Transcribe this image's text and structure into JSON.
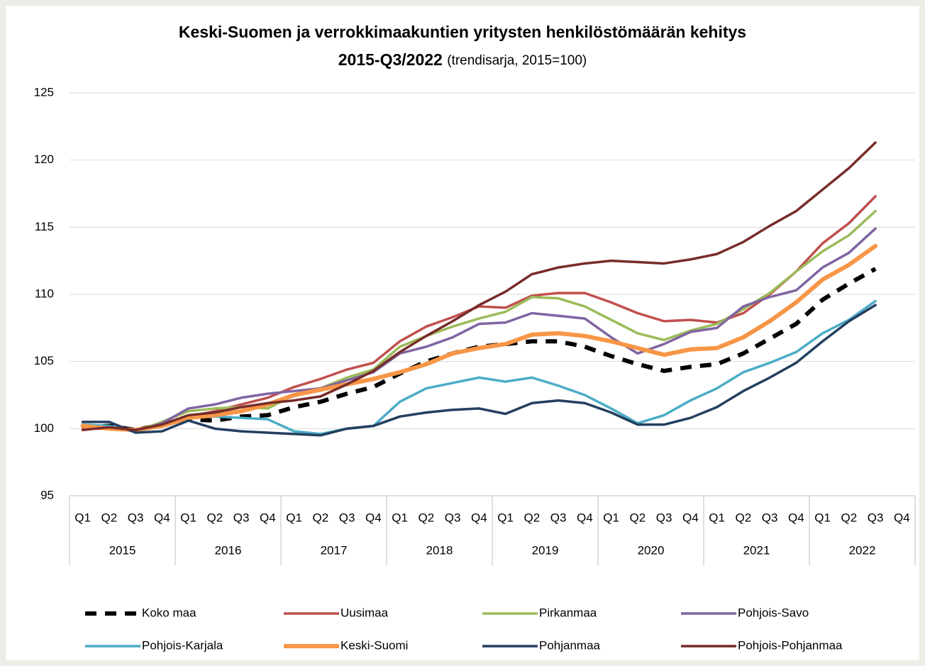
{
  "chart_data": {
    "type": "line",
    "title": [
      "Keski-Suomen ja verrokkimaakuntien yritysten henkilöstömäärän kehitys",
      "2015-Q3/2022"
    ],
    "subtitle": "(trendisarja, 2015=100)",
    "categories": [
      "Q1",
      "Q2",
      "Q3",
      "Q4",
      "Q1",
      "Q2",
      "Q3",
      "Q4",
      "Q1",
      "Q2",
      "Q3",
      "Q4",
      "Q1",
      "Q2",
      "Q3",
      "Q4",
      "Q1",
      "Q2",
      "Q3",
      "Q4",
      "Q1",
      "Q2",
      "Q3",
      "Q4",
      "Q1",
      "Q2",
      "Q3",
      "Q4",
      "Q1",
      "Q2",
      "Q3",
      "Q4"
    ],
    "groups": [
      "2015",
      "2016",
      "2017",
      "2018",
      "2019",
      "2020",
      "2021",
      "2022"
    ],
    "ylim": [
      95,
      125
    ],
    "yticks": [
      95,
      100,
      105,
      110,
      115,
      120,
      125
    ],
    "grid": true,
    "legend": "bottom",
    "series": [
      {
        "name": "Koko maa",
        "color": "#000000",
        "dashed": true,
        "values": [
          100.1,
          100.2,
          99.9,
          100.3,
          100.7,
          100.6,
          100.9,
          101.0,
          101.6,
          102.0,
          102.6,
          103.1,
          104.1,
          105.0,
          105.6,
          106.1,
          106.3,
          106.5,
          106.5,
          106.1,
          105.4,
          104.8,
          104.3,
          104.6,
          104.8,
          105.6,
          106.7,
          107.8,
          109.6,
          110.8,
          111.9,
          null
        ]
      },
      {
        "name": "Uusimaa",
        "color": "#c0504d",
        "values": [
          100.0,
          100.0,
          99.9,
          100.4,
          100.9,
          101.3,
          101.8,
          102.3,
          103.1,
          103.7,
          104.4,
          104.9,
          106.5,
          107.6,
          108.3,
          109.1,
          109.0,
          109.9,
          110.1,
          110.1,
          109.4,
          108.6,
          108.0,
          108.1,
          107.9,
          108.6,
          110.0,
          111.7,
          113.8,
          115.3,
          117.3,
          null
        ]
      },
      {
        "name": "Pirkanmaa",
        "color": "#9bbb59",
        "values": [
          100.2,
          100.1,
          99.8,
          100.5,
          101.3,
          101.5,
          101.6,
          101.5,
          102.5,
          103.0,
          103.8,
          104.4,
          106.1,
          106.9,
          107.6,
          108.2,
          108.7,
          109.8,
          109.7,
          109.1,
          108.1,
          107.1,
          106.6,
          107.3,
          107.8,
          108.9,
          110.1,
          111.7,
          113.2,
          114.4,
          116.2,
          null
        ]
      },
      {
        "name": "Pohjois-Savo",
        "color": "#8064a2",
        "values": [
          100.2,
          100.1,
          99.8,
          100.4,
          101.5,
          101.8,
          102.3,
          102.6,
          102.8,
          103.0,
          103.6,
          104.2,
          105.6,
          106.1,
          106.8,
          107.8,
          107.9,
          108.6,
          108.4,
          108.2,
          106.8,
          105.6,
          106.3,
          107.2,
          107.5,
          109.1,
          109.8,
          110.3,
          112.0,
          113.1,
          114.9,
          null
        ]
      },
      {
        "name": "Pohjois-Karjala",
        "color": "#4bacc6",
        "values": [
          100.3,
          100.2,
          99.8,
          100.2,
          100.8,
          100.9,
          100.8,
          100.7,
          99.8,
          99.6,
          100.0,
          100.2,
          102.0,
          103.0,
          103.4,
          103.8,
          103.5,
          103.8,
          103.2,
          102.5,
          101.5,
          100.4,
          101.0,
          102.1,
          103.0,
          104.2,
          104.9,
          105.7,
          107.1,
          108.1,
          109.5,
          null
        ]
      },
      {
        "name": "Keski-Suomi",
        "color": "#f79646",
        "highlight": true,
        "values": [
          100.2,
          100.0,
          99.9,
          100.2,
          100.8,
          101.0,
          101.3,
          101.8,
          102.5,
          102.9,
          103.3,
          103.7,
          104.2,
          104.8,
          105.6,
          106.0,
          106.3,
          107.0,
          107.1,
          106.9,
          106.5,
          106.0,
          105.5,
          105.9,
          106.0,
          106.8,
          108.0,
          109.4,
          111.1,
          112.2,
          113.6,
          null
        ]
      },
      {
        "name": "Pohjanmaa",
        "color": "#243f60",
        "values": [
          100.5,
          100.5,
          99.7,
          99.8,
          100.6,
          100.0,
          99.8,
          99.7,
          99.6,
          99.5,
          100.0,
          100.2,
          100.9,
          101.2,
          101.4,
          101.5,
          101.1,
          101.9,
          102.1,
          101.9,
          101.2,
          100.3,
          100.3,
          100.8,
          101.6,
          102.8,
          103.8,
          104.9,
          106.5,
          108.0,
          109.2,
          null
        ]
      },
      {
        "name": "Pohjois-Pohjanmaa",
        "color": "#772c2a",
        "values": [
          99.9,
          100.1,
          99.9,
          100.3,
          101.0,
          101.2,
          101.6,
          101.9,
          102.1,
          102.4,
          103.3,
          104.3,
          105.7,
          106.9,
          108.0,
          109.2,
          110.2,
          111.5,
          112.0,
          112.3,
          112.5,
          112.4,
          112.3,
          112.6,
          113.0,
          113.9,
          115.1,
          116.2,
          117.8,
          119.4,
          121.3,
          null
        ]
      }
    ]
  }
}
